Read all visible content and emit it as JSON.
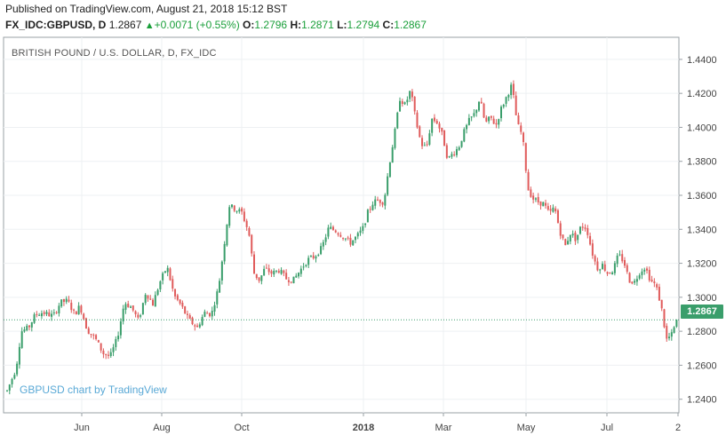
{
  "header": {
    "published": "Published on TradingView.com, August 21, 2018 15:12 BST",
    "symbol": "FX_IDC:GBPUSD, D",
    "last": "1.2867",
    "change": "+0.0071 (+0.55%)",
    "o_label": "O:",
    "o_value": "1.2796",
    "h_label": "H:",
    "h_value": "1.2871",
    "l_label": "L:",
    "l_value": "1.2794",
    "c_label": "C:",
    "c_value": "1.2867"
  },
  "chart_title": "BRITISH POUND / U.S. DOLLAR, D, FX_IDC",
  "watermark": "GBPUSD chart by TradingView",
  "price_badge": "1.2867",
  "colors": {
    "up": "#3a9e6b",
    "down": "#e05b5b",
    "grid": "#eef0f3",
    "border": "#9aa0a6",
    "last_line": "#3a9e6b"
  },
  "chart_data": {
    "type": "candlestick",
    "title": "BRITISH POUND / U.S. DOLLAR, D, FX_IDC",
    "y_ticks": [
      "1.4400",
      "1.4200",
      "1.4000",
      "1.3800",
      "1.3600",
      "1.3400",
      "1.3200",
      "1.3000",
      "1.2800",
      "1.2600",
      "1.2400"
    ],
    "ylim": [
      1.232,
      1.453
    ],
    "x_ticks": [
      "Jun",
      "Aug",
      "Oct",
      "2018",
      "Mar",
      "May",
      "Jul",
      "2"
    ],
    "last_price": 1.2867,
    "path": [
      [
        0,
        1.245
      ],
      [
        10,
        1.258
      ],
      [
        16,
        1.28
      ],
      [
        24,
        1.282
      ],
      [
        32,
        1.29
      ],
      [
        40,
        1.291
      ],
      [
        52,
        1.289
      ],
      [
        60,
        1.297
      ],
      [
        68,
        1.298
      ],
      [
        76,
        1.29
      ],
      [
        82,
        1.295
      ],
      [
        90,
        1.281
      ],
      [
        100,
        1.275
      ],
      [
        108,
        1.267
      ],
      [
        116,
        1.265
      ],
      [
        124,
        1.276
      ],
      [
        132,
        1.297
      ],
      [
        140,
        1.294
      ],
      [
        148,
        1.286
      ],
      [
        156,
        1.303
      ],
      [
        164,
        1.296
      ],
      [
        172,
        1.309
      ],
      [
        180,
        1.318
      ],
      [
        188,
        1.301
      ],
      [
        196,
        1.295
      ],
      [
        204,
        1.287
      ],
      [
        214,
        1.282
      ],
      [
        222,
        1.291
      ],
      [
        230,
        1.29
      ],
      [
        238,
        1.306
      ],
      [
        244,
        1.33
      ],
      [
        250,
        1.354
      ],
      [
        256,
        1.352
      ],
      [
        264,
        1.35
      ],
      [
        272,
        1.338
      ],
      [
        278,
        1.314
      ],
      [
        284,
        1.31
      ],
      [
        290,
        1.317
      ],
      [
        298,
        1.314
      ],
      [
        306,
        1.316
      ],
      [
        314,
        1.311
      ],
      [
        322,
        1.31
      ],
      [
        330,
        1.316
      ],
      [
        338,
        1.322
      ],
      [
        346,
        1.324
      ],
      [
        354,
        1.329
      ],
      [
        362,
        1.341
      ],
      [
        370,
        1.339
      ],
      [
        378,
        1.336
      ],
      [
        386,
        1.332
      ],
      [
        394,
        1.336
      ],
      [
        400,
        1.34
      ],
      [
        406,
        1.35
      ],
      [
        412,
        1.356
      ],
      [
        418,
        1.357
      ],
      [
        424,
        1.356
      ],
      [
        430,
        1.378
      ],
      [
        436,
        1.396
      ],
      [
        442,
        1.417
      ],
      [
        448,
        1.413
      ],
      [
        454,
        1.422
      ],
      [
        460,
        1.404
      ],
      [
        466,
        1.39
      ],
      [
        472,
        1.388
      ],
      [
        478,
        1.405
      ],
      [
        484,
        1.403
      ],
      [
        490,
        1.395
      ],
      [
        496,
        1.381
      ],
      [
        502,
        1.385
      ],
      [
        508,
        1.388
      ],
      [
        514,
        1.397
      ],
      [
        520,
        1.404
      ],
      [
        526,
        1.408
      ],
      [
        532,
        1.417
      ],
      [
        538,
        1.402
      ],
      [
        544,
        1.406
      ],
      [
        550,
        1.401
      ],
      [
        556,
        1.411
      ],
      [
        562,
        1.418
      ],
      [
        568,
        1.425
      ],
      [
        574,
        1.402
      ],
      [
        580,
        1.395
      ],
      [
        586,
        1.364
      ],
      [
        592,
        1.358
      ],
      [
        598,
        1.356
      ],
      [
        604,
        1.355
      ],
      [
        610,
        1.349
      ],
      [
        616,
        1.353
      ],
      [
        622,
        1.339
      ],
      [
        628,
        1.33
      ],
      [
        634,
        1.338
      ],
      [
        640,
        1.334
      ],
      [
        646,
        1.342
      ],
      [
        652,
        1.341
      ],
      [
        658,
        1.327
      ],
      [
        664,
        1.317
      ],
      [
        670,
        1.319
      ],
      [
        676,
        1.314
      ],
      [
        682,
        1.316
      ],
      [
        688,
        1.325
      ],
      [
        694,
        1.321
      ],
      [
        700,
        1.31
      ],
      [
        706,
        1.309
      ],
      [
        712,
        1.315
      ],
      [
        718,
        1.318
      ],
      [
        724,
        1.31
      ],
      [
        730,
        1.307
      ],
      [
        736,
        1.295
      ],
      [
        742,
        1.275
      ],
      [
        748,
        1.278
      ],
      [
        754,
        1.287
      ]
    ]
  }
}
